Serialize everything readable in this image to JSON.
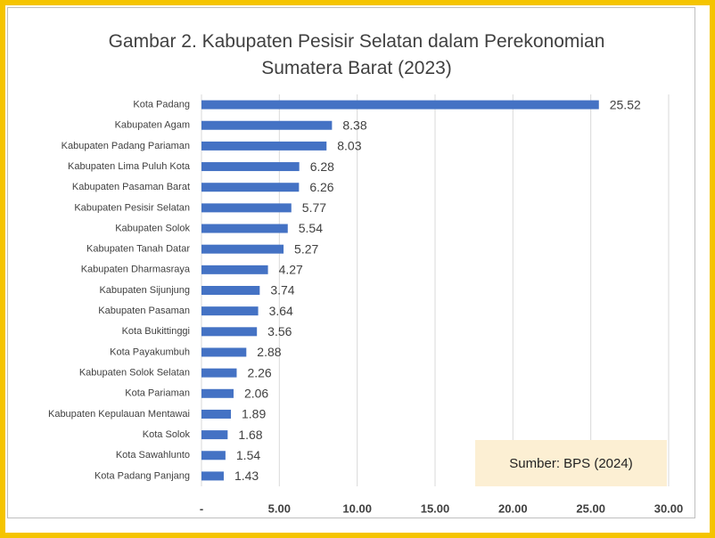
{
  "chart_data": {
    "type": "barh",
    "title": "Gambar 2. Kabupaten Pesisir Selatan dalam Perekonomian Sumatera Barat (2023)",
    "annotation": "Sumber: BPS (2024)",
    "categories": [
      "Kota Padang",
      "Kabupaten Agam",
      "Kabupaten Padang Pariaman",
      "Kabupaten Lima Puluh Kota",
      "Kabupaten Pasaman Barat",
      "Kabupaten Pesisir Selatan",
      "Kabupaten Solok",
      "Kabupaten Tanah Datar",
      "Kabupaten Dharmasraya",
      "Kabupaten Sijunjung",
      "Kabupaten Pasaman",
      "Kota Bukittinggi",
      "Kota Payakumbuh",
      "Kabupaten Solok Selatan",
      "Kota Pariaman",
      "Kabupaten Kepulauan Mentawai",
      "Kota Solok",
      "Kota Sawahlunto",
      "Kota Padang Panjang"
    ],
    "values": [
      25.52,
      8.38,
      8.03,
      6.28,
      6.26,
      5.77,
      5.54,
      5.27,
      4.27,
      3.74,
      3.64,
      3.56,
      2.88,
      2.26,
      2.06,
      1.89,
      1.68,
      1.54,
      1.43
    ],
    "color": "#4472c4",
    "xlim": [
      0,
      30
    ],
    "xticks": [
      {
        "value": 0,
        "label": "-"
      },
      {
        "value": 5,
        "label": "5.00"
      },
      {
        "value": 10,
        "label": "10.00"
      },
      {
        "value": 15,
        "label": "15.00"
      },
      {
        "value": 20,
        "label": "20.00"
      },
      {
        "value": 25,
        "label": "25.00"
      },
      {
        "value": 30,
        "label": "30.00"
      }
    ],
    "grid": true
  }
}
